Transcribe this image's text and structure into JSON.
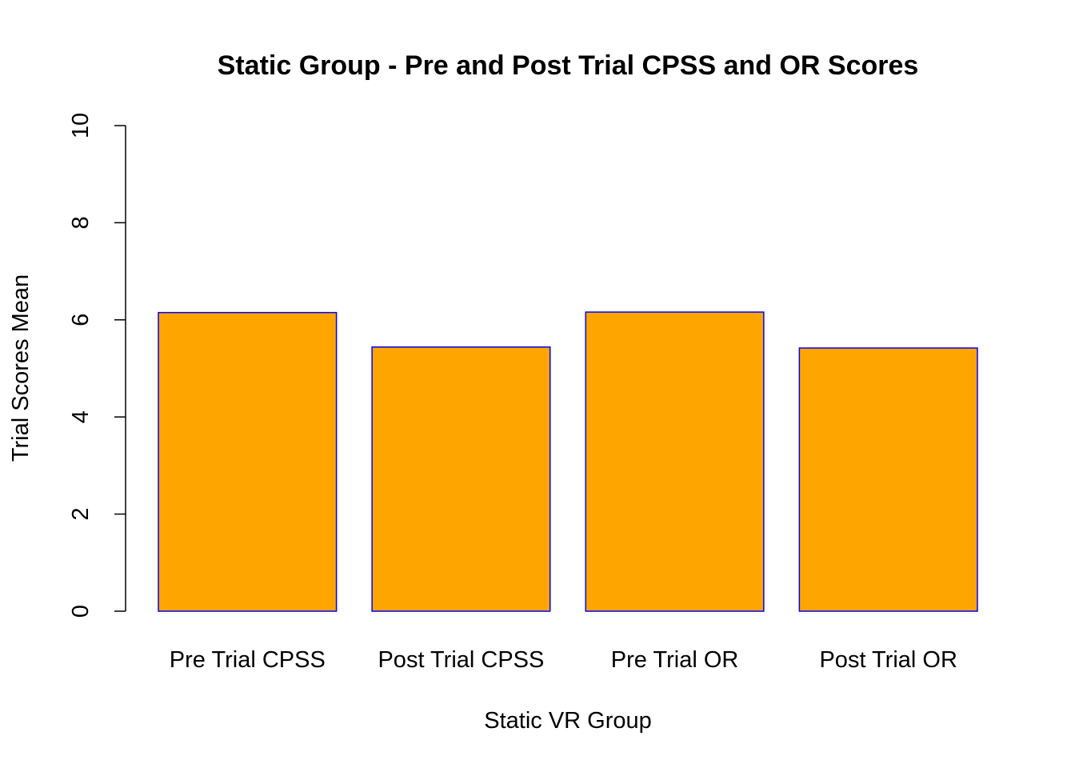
{
  "chart_data": {
    "type": "bar",
    "title": "Static Group - Pre and Post Trial CPSS and OR Scores",
    "xlabel": "Static VR Group",
    "ylabel": "Trial Scores Mean",
    "categories": [
      "Pre Trial CPSS",
      "Post Trial CPSS",
      "Pre Trial OR",
      "Post Trial OR"
    ],
    "values": [
      6.15,
      5.44,
      6.16,
      5.42
    ],
    "ylim": [
      0,
      10
    ],
    "yticks": [
      0,
      2,
      4,
      6,
      8,
      10
    ],
    "grid": false,
    "legend": "none",
    "colors": {
      "bar_fill": "#FFA500",
      "bar_border": "#0000FF",
      "axis": "#000000"
    }
  }
}
